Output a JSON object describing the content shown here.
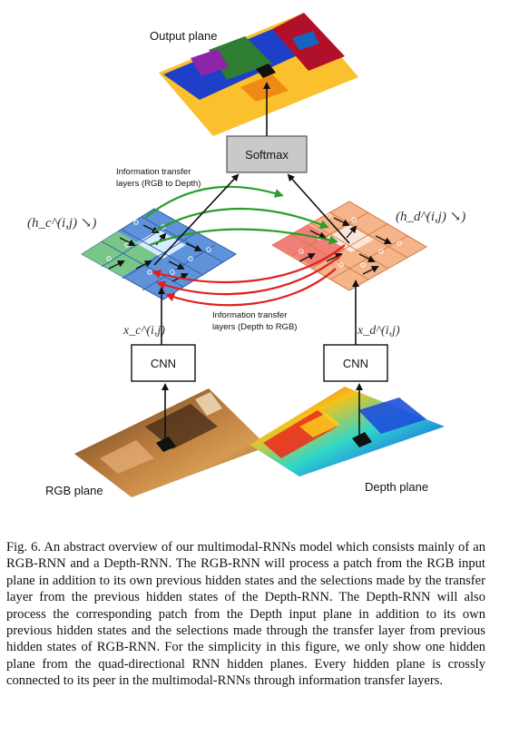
{
  "figure": {
    "output_label": "Output plane",
    "softmax_label": "Softmax",
    "transfer_top": [
      "Information transfer",
      "layers (RGB to Depth)"
    ],
    "transfer_bottom": [
      "Information transfer",
      "layers (Depth to RGB)"
    ],
    "hc_label": "(h_c^(i,j) ↘)",
    "hd_label": "(h_d^(i,j) ↘)",
    "xc_label": "x_c^(i,j)",
    "xd_label": "x_d^(i,j)",
    "cnn_left_label": "CNN",
    "cnn_right_label": "CNN",
    "rgb_label": "RGB plane",
    "depth_label": "Depth plane"
  },
  "caption": "Fig. 6.  An abstract overview of our multimodal-RNNs model which consists mainly of an RGB-RNN and a Depth-RNN. The RGB-RNN will process a patch from the RGB input plane in addition to its own previous hidden states and the selections made by the transfer layer from the previous hidden states of the Depth-RNN. The Depth-RNN will also process the corresponding patch from the Depth input plane in addition to its own previous hidden states and the selections made through the transfer layer from previous hidden states of RGB-RNN. For the simplicity in this figure, we only show one hidden plane from the quad-directional RNN hidden planes. Every hidden plane is crossly connected to its peer in the multimodal-RNNs through information transfer layers."
}
